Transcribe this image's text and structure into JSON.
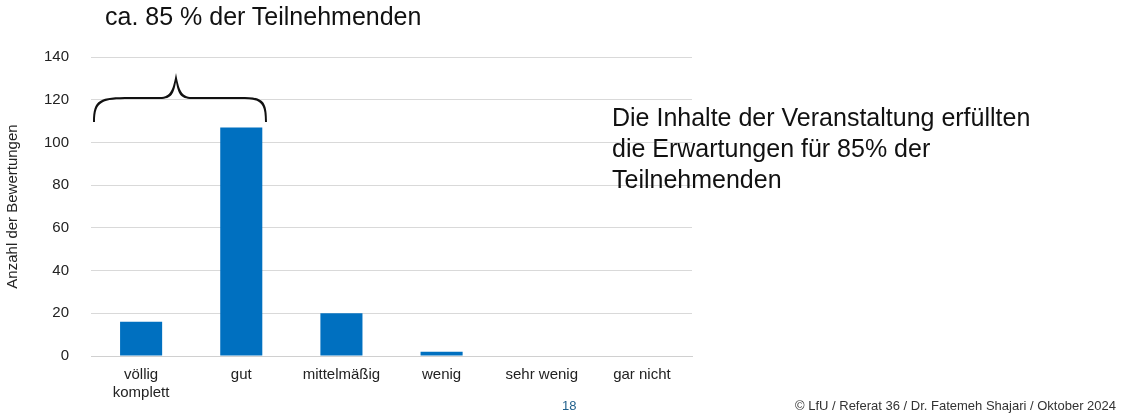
{
  "chart_data": {
    "type": "bar",
    "title": "ca. 85 % der Teilnehmenden",
    "ylabel": "Anzahl der Bewertungen",
    "categories": [
      "völlig komplett",
      "gut",
      "mittelmäßig",
      "wenig",
      "sehr wenig",
      "gar nicht"
    ],
    "values": [
      16,
      107,
      20,
      2,
      0,
      0
    ],
    "color": "#0070c0",
    "ylim": [
      0,
      140
    ],
    "yticks": [
      0,
      20,
      40,
      60,
      80,
      100,
      120,
      140
    ],
    "grid": "y",
    "legend": false,
    "annotations": [
      "Die Inhalte der Veranstaltung erfüllten die Erwartungen für 85% der Teilnehmenden",
      "18",
      "© LfU / Referat 36 / Dr. Fatemeh Shajari / Oktober 2024"
    ]
  }
}
